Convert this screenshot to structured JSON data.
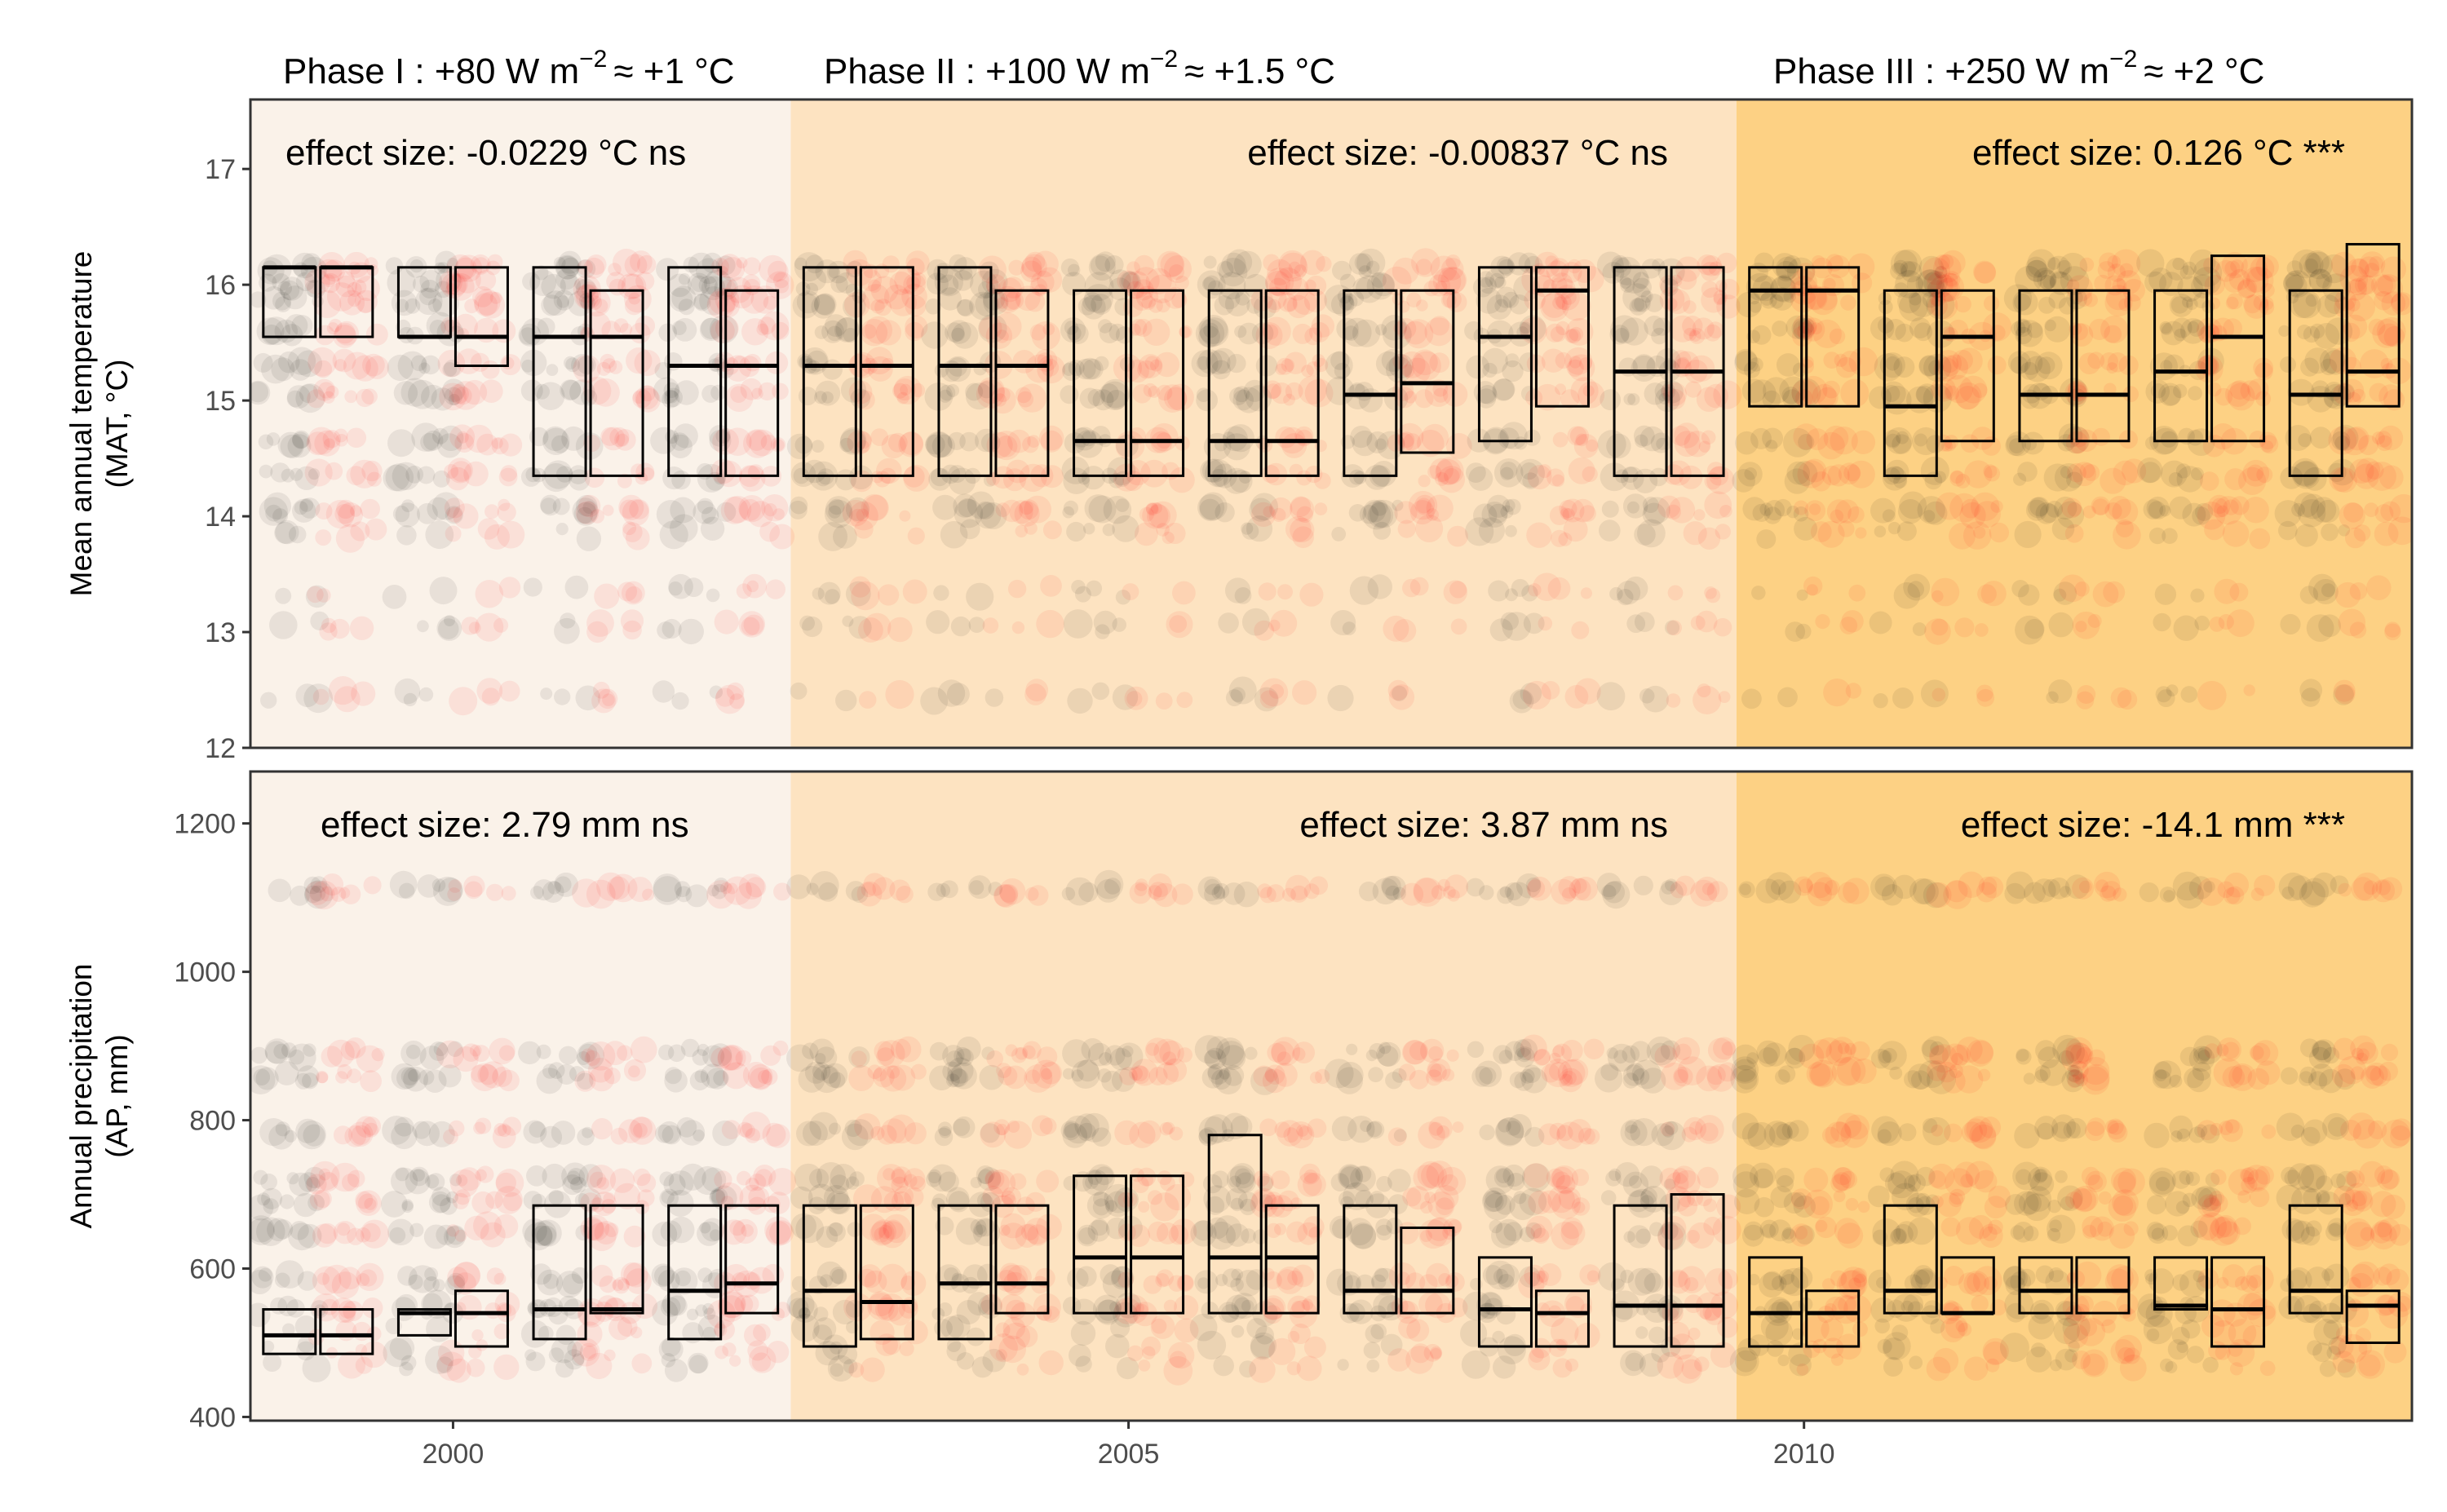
{
  "chart_data": {
    "type": "box",
    "x_ticks": [
      "2000",
      "2005",
      "2010"
    ],
    "years": [
      1999,
      2000,
      2001,
      2002,
      2003,
      2004,
      2005,
      2006,
      2007,
      2008,
      2009,
      2010,
      2011,
      2012,
      2013,
      2014
    ],
    "phases": [
      {
        "label": "Phase I :  +80 W m",
        "sup": "−2",
        "tail": "≈ +1 °C",
        "year_from": 1998.5,
        "year_to": 2002.5,
        "color": "#faf2e9"
      },
      {
        "label": "Phase II :  +100 W m",
        "sup": "−2",
        "tail": "≈ +1.5 °C",
        "year_from": 2002.5,
        "year_to": 2009.5,
        "color": "#fde3c1"
      },
      {
        "label": "Phase III :  +250 W m",
        "sup": "−2",
        "tail": "≈ +2 °C",
        "year_from": 2009.5,
        "year_to": 2014.5,
        "color": "#fdd184"
      }
    ],
    "group_colors": {
      "control": "#000000",
      "warmed": "#ff0000"
    },
    "panels": [
      {
        "id": "mat",
        "ylabel": "Mean annual temperature",
        "ylabel2": "(MAT, °C)",
        "ylim": [
          12,
          17.6
        ],
        "yticks": [
          12,
          13,
          14,
          15,
          16,
          17
        ],
        "point_levels": [
          16.15,
          16.0,
          15.85,
          15.6,
          15.3,
          15.05,
          14.65,
          14.35,
          14.05,
          13.85,
          13.35,
          13.05,
          12.45
        ],
        "effects": [
          "effect size:  -0.0229 °C ns",
          "effect size:  -0.00837 °C ns",
          "effect size:  0.126 °C ***"
        ],
        "control_boxes": [
          [
            15.55,
            16.15,
            16.15
          ],
          [
            15.55,
            15.55,
            16.15
          ],
          [
            14.35,
            15.55,
            16.15
          ],
          [
            14.35,
            15.3,
            16.15
          ],
          [
            14.35,
            15.3,
            16.15
          ],
          [
            14.35,
            15.3,
            16.15
          ],
          [
            14.35,
            14.65,
            15.95
          ],
          [
            14.35,
            14.65,
            15.95
          ],
          [
            14.35,
            15.05,
            15.95
          ],
          [
            14.65,
            15.55,
            16.15
          ],
          [
            14.35,
            15.25,
            16.15
          ],
          [
            14.95,
            15.95,
            16.15
          ],
          [
            14.35,
            14.95,
            15.95
          ],
          [
            14.65,
            15.05,
            15.95
          ],
          [
            14.65,
            15.25,
            15.95
          ],
          [
            14.35,
            15.05,
            15.95
          ]
        ],
        "warmed_boxes": [
          [
            15.55,
            16.15,
            16.15
          ],
          [
            15.3,
            15.55,
            16.15
          ],
          [
            14.35,
            15.55,
            15.95
          ],
          [
            14.35,
            15.3,
            15.95
          ],
          [
            14.35,
            15.3,
            16.15
          ],
          [
            14.35,
            15.3,
            15.95
          ],
          [
            14.35,
            14.65,
            15.95
          ],
          [
            14.35,
            14.65,
            15.95
          ],
          [
            14.55,
            15.15,
            15.95
          ],
          [
            14.95,
            15.95,
            16.15
          ],
          [
            14.35,
            15.25,
            16.15
          ],
          [
            14.95,
            15.95,
            16.15
          ],
          [
            14.65,
            15.55,
            15.95
          ],
          [
            14.65,
            15.05,
            15.95
          ],
          [
            14.65,
            15.55,
            16.25
          ],
          [
            14.95,
            15.25,
            16.35
          ]
        ]
      },
      {
        "id": "ap",
        "ylabel": "Annual precipitation",
        "ylabel2": "(AP, mm)",
        "ylim": [
          395,
          1270
        ],
        "yticks": [
          400,
          600,
          800,
          1000,
          1200
        ],
        "point_levels": [
          1110,
          890,
          860,
          785,
          720,
          690,
          650,
          585,
          545,
          515,
          490,
          470
        ],
        "effects": [
          "effect size:  2.79 mm ns",
          "effect size:  3.87 mm ns",
          "effect size:  -14.1 mm ***"
        ],
        "control_boxes": [
          [
            485,
            510,
            545
          ],
          [
            510,
            540,
            545
          ],
          [
            505,
            545,
            685
          ],
          [
            505,
            570,
            685
          ],
          [
            495,
            570,
            685
          ],
          [
            505,
            580,
            685
          ],
          [
            540,
            615,
            725
          ],
          [
            540,
            615,
            780
          ],
          [
            540,
            570,
            685
          ],
          [
            495,
            545,
            615
          ],
          [
            495,
            550,
            685
          ],
          [
            495,
            540,
            615
          ],
          [
            540,
            570,
            685
          ],
          [
            540,
            570,
            615
          ],
          [
            545,
            550,
            615
          ],
          [
            540,
            570,
            685
          ]
        ],
        "warmed_boxes": [
          [
            485,
            510,
            545
          ],
          [
            495,
            540,
            570
          ],
          [
            540,
            545,
            685
          ],
          [
            540,
            580,
            685
          ],
          [
            505,
            555,
            685
          ],
          [
            540,
            580,
            685
          ],
          [
            540,
            615,
            725
          ],
          [
            540,
            615,
            685
          ],
          [
            540,
            570,
            655
          ],
          [
            495,
            540,
            570
          ],
          [
            495,
            550,
            700
          ],
          [
            495,
            540,
            570
          ],
          [
            540,
            540,
            615
          ],
          [
            540,
            570,
            615
          ],
          [
            495,
            545,
            615
          ],
          [
            500,
            550,
            570
          ]
        ]
      }
    ]
  }
}
